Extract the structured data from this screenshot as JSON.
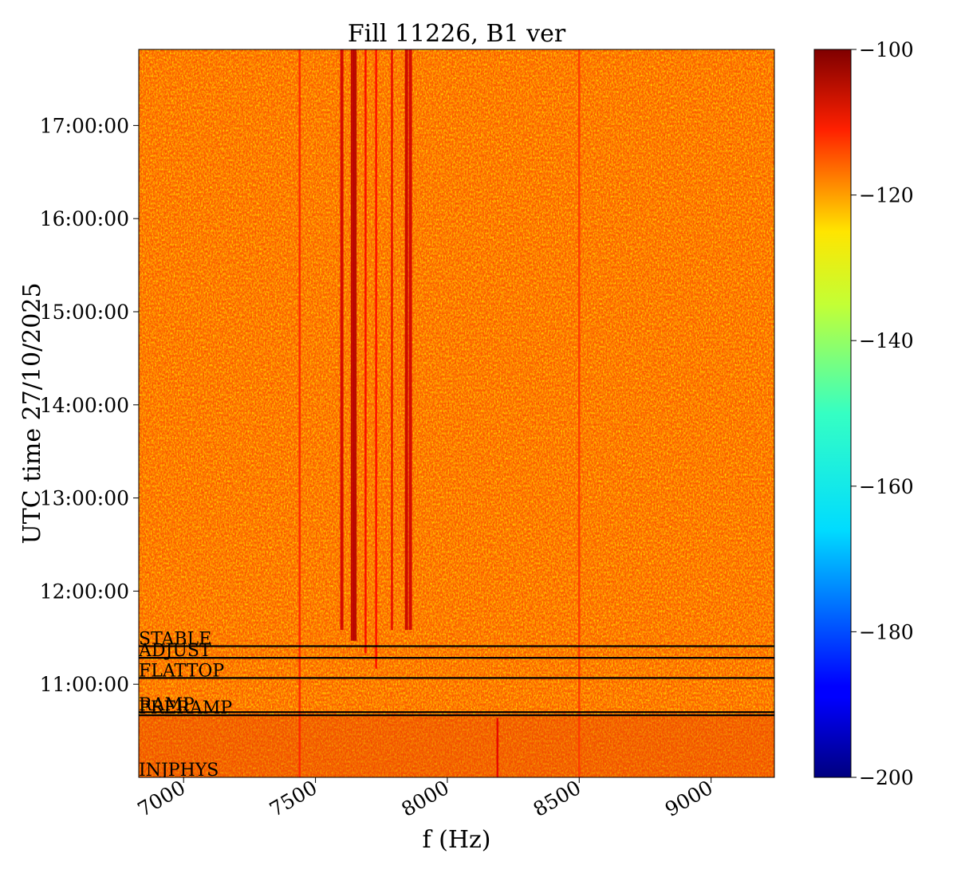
{
  "chart_data": {
    "type": "heatmap",
    "title": "Fill 11226, B1 ver",
    "xlabel": "f (Hz)",
    "ylabel": "UTC time 27/10/2025",
    "xlim": [
      6830,
      9240
    ],
    "ylim": [
      "10:00:00",
      "17:49:00"
    ],
    "x_ticks": [
      {
        "value": 7000,
        "label": "7000"
      },
      {
        "value": 7500,
        "label": "7500"
      },
      {
        "value": 8000,
        "label": "8000"
      },
      {
        "value": 8500,
        "label": "8500"
      },
      {
        "value": 9000,
        "label": "9000"
      }
    ],
    "y_ticks": [
      {
        "value": "11:00:00",
        "label": "11:00:00"
      },
      {
        "value": "12:00:00",
        "label": "12:00:00"
      },
      {
        "value": "13:00:00",
        "label": "13:00:00"
      },
      {
        "value": "14:00:00",
        "label": "14:00:00"
      },
      {
        "value": "15:00:00",
        "label": "15:00:00"
      },
      {
        "value": "16:00:00",
        "label": "16:00:00"
      },
      {
        "value": "17:00:00",
        "label": "17:00:00"
      }
    ],
    "colorbar": {
      "colormap": "jet",
      "range": [
        -200,
        -100
      ],
      "ticks": [
        {
          "value": -100,
          "label": "−100"
        },
        {
          "value": -120,
          "label": "−120"
        },
        {
          "value": -140,
          "label": "−140"
        },
        {
          "value": -160,
          "label": "−160"
        },
        {
          "value": -180,
          "label": "−180"
        },
        {
          "value": -200,
          "label": "−200"
        }
      ]
    },
    "background_level": -122,
    "beam_modes": [
      {
        "label": "INJPHYS",
        "time": "10:00:00"
      },
      {
        "label": "PRERAMP",
        "time": "10:40:00"
      },
      {
        "label": "RAMP",
        "time": "10:42:00"
      },
      {
        "label": "FLATTOP",
        "time": "11:04:00"
      },
      {
        "label": "ADJUST",
        "time": "11:17:00"
      },
      {
        "label": "STABLE",
        "time": "11:24:30"
      }
    ],
    "lines": [
      {
        "freq": 7440,
        "start": "10:00:00",
        "end": "17:49:00",
        "level": -116
      },
      {
        "freq": 7600,
        "start": "11:35:00",
        "end": "17:49:00",
        "level": -108
      },
      {
        "freq": 7640,
        "start": "11:28:00",
        "end": "17:49:00",
        "level": -106
      },
      {
        "freq": 7650,
        "start": "11:28:00",
        "end": "17:49:00",
        "level": -105
      },
      {
        "freq": 7690,
        "start": "11:20:00",
        "end": "17:49:00",
        "level": -112
      },
      {
        "freq": 7730,
        "start": "11:10:00",
        "end": "17:49:00",
        "level": -113
      },
      {
        "freq": 7790,
        "start": "11:35:00",
        "end": "17:49:00",
        "level": -110
      },
      {
        "freq": 7845,
        "start": "11:35:00",
        "end": "17:49:00",
        "level": -107
      },
      {
        "freq": 7860,
        "start": "11:35:00",
        "end": "17:49:00",
        "level": -108
      },
      {
        "freq": 8190,
        "start": "10:00:00",
        "end": "10:38:00",
        "level": -110
      },
      {
        "freq": 8500,
        "start": "10:00:00",
        "end": "17:49:00",
        "level": -118
      }
    ]
  }
}
